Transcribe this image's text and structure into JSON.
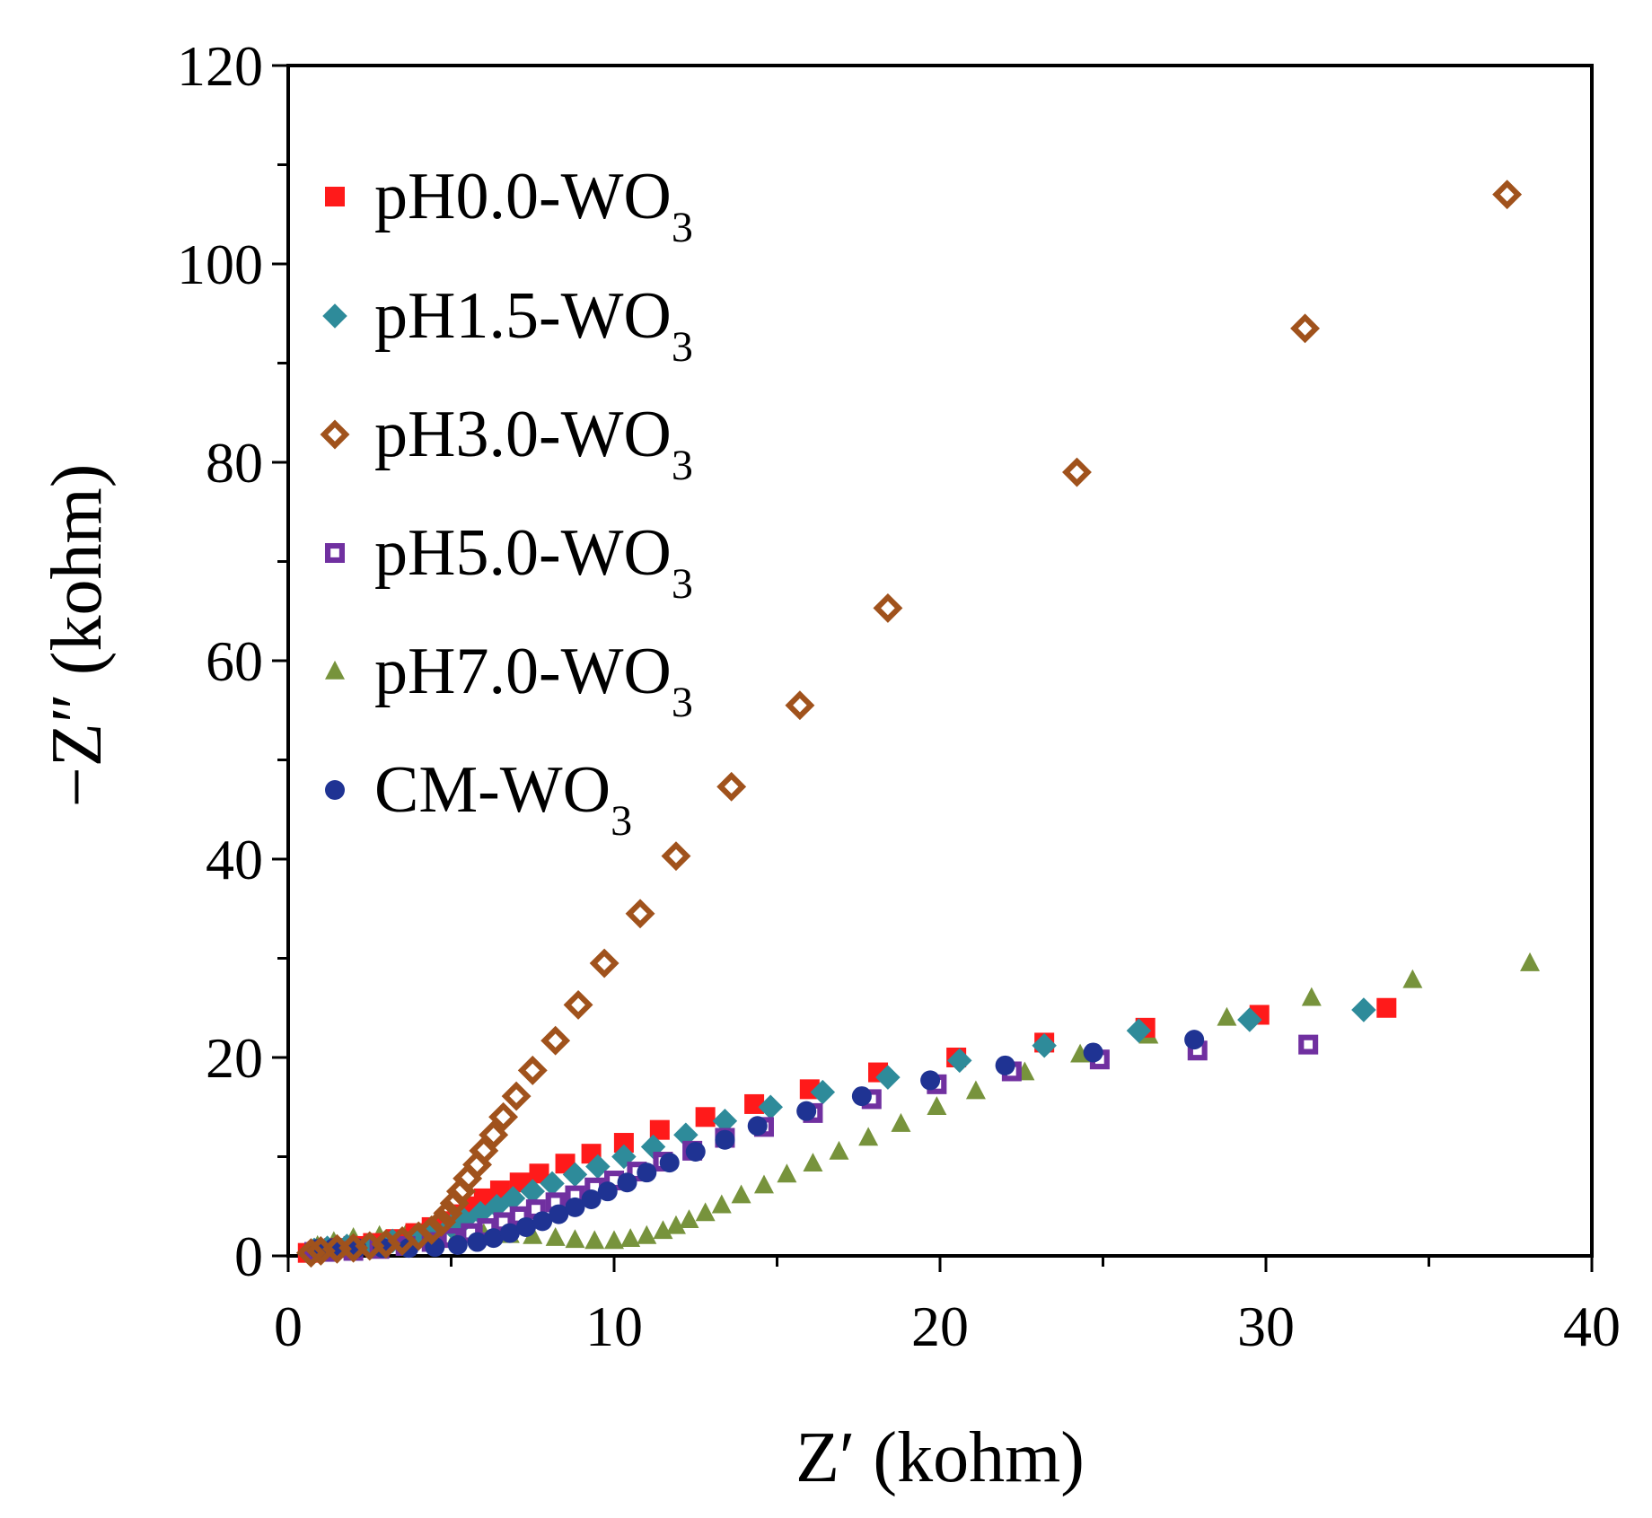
{
  "chart_data": {
    "type": "scatter",
    "title": "",
    "xlabel": "Z′ (kohm)",
    "ylabel": "−Z″ (kohm)",
    "xlim": [
      0,
      40
    ],
    "ylim": [
      0,
      120
    ],
    "xticks": [
      "0",
      "10",
      "20",
      "30",
      "40"
    ],
    "yticks": [
      "0",
      "20",
      "40",
      "60",
      "80",
      "100",
      "120"
    ],
    "grid": false,
    "legend_position": "top-left",
    "series": [
      {
        "name": "pH0.0-WO",
        "sub": "3",
        "marker": "square",
        "filled": true,
        "color": "#ff1a1a",
        "points": [
          [
            0.6,
            0.3
          ],
          [
            0.9,
            0.5
          ],
          [
            1.4,
            0.8
          ],
          [
            2.0,
            1.0
          ],
          [
            2.6,
            1.3
          ],
          [
            3.3,
            1.7
          ],
          [
            3.9,
            2.3
          ],
          [
            4.4,
            2.9
          ],
          [
            4.8,
            3.5
          ],
          [
            5.2,
            4.2
          ],
          [
            5.6,
            5.0
          ],
          [
            6.0,
            5.8
          ],
          [
            6.5,
            6.6
          ],
          [
            7.1,
            7.4
          ],
          [
            7.7,
            8.3
          ],
          [
            8.5,
            9.3
          ],
          [
            9.3,
            10.3
          ],
          [
            10.3,
            11.4
          ],
          [
            11.4,
            12.7
          ],
          [
            12.8,
            14.0
          ],
          [
            14.3,
            15.3
          ],
          [
            16.0,
            16.8
          ],
          [
            18.1,
            18.5
          ],
          [
            20.5,
            20.0
          ],
          [
            23.2,
            21.5
          ],
          [
            26.3,
            23.0
          ],
          [
            29.8,
            24.3
          ],
          [
            33.7,
            25.0
          ]
        ]
      },
      {
        "name": "pH1.5-WO",
        "sub": "3",
        "marker": "diamond",
        "filled": true,
        "color": "#2e8b9a",
        "points": [
          [
            0.8,
            0.6
          ],
          [
            1.2,
            0.8
          ],
          [
            1.8,
            1.0
          ],
          [
            2.5,
            1.2
          ],
          [
            3.2,
            1.5
          ],
          [
            3.9,
            1.9
          ],
          [
            4.5,
            2.4
          ],
          [
            5.0,
            3.0
          ],
          [
            5.4,
            3.6
          ],
          [
            5.9,
            4.3
          ],
          [
            6.4,
            5.0
          ],
          [
            6.9,
            5.8
          ],
          [
            7.5,
            6.5
          ],
          [
            8.1,
            7.3
          ],
          [
            8.8,
            8.2
          ],
          [
            9.5,
            9.0
          ],
          [
            10.3,
            10.0
          ],
          [
            11.2,
            11.0
          ],
          [
            12.2,
            12.2
          ],
          [
            13.4,
            13.6
          ],
          [
            14.8,
            15.0
          ],
          [
            16.4,
            16.5
          ],
          [
            18.4,
            18.0
          ],
          [
            20.6,
            19.7
          ],
          [
            23.2,
            21.2
          ],
          [
            26.1,
            22.7
          ],
          [
            29.5,
            23.8
          ],
          [
            33.0,
            24.8
          ]
        ]
      },
      {
        "name": "pH3.0-WO",
        "sub": "3",
        "marker": "diamond",
        "filled": false,
        "color": "#a0521c",
        "points": [
          [
            0.7,
            0.3
          ],
          [
            1.0,
            0.5
          ],
          [
            1.5,
            0.7
          ],
          [
            2.0,
            0.8
          ],
          [
            2.5,
            1.0
          ],
          [
            3.0,
            1.2
          ],
          [
            3.5,
            1.5
          ],
          [
            4.0,
            2.0
          ],
          [
            4.4,
            2.6
          ],
          [
            4.7,
            3.4
          ],
          [
            4.9,
            4.3
          ],
          [
            5.1,
            5.3
          ],
          [
            5.3,
            6.5
          ],
          [
            5.5,
            7.8
          ],
          [
            5.8,
            9.2
          ],
          [
            6.0,
            10.6
          ],
          [
            6.3,
            12.2
          ],
          [
            6.6,
            14.0
          ],
          [
            7.0,
            16.1
          ],
          [
            7.5,
            18.7
          ],
          [
            8.2,
            21.7
          ],
          [
            8.9,
            25.3
          ],
          [
            9.7,
            29.5
          ],
          [
            10.8,
            34.5
          ],
          [
            11.9,
            40.3
          ],
          [
            13.6,
            47.3
          ],
          [
            15.7,
            55.5
          ],
          [
            18.4,
            65.3
          ],
          [
            24.2,
            79.0
          ],
          [
            31.2,
            93.5
          ],
          [
            37.4,
            107.0
          ]
        ]
      },
      {
        "name": "pH5.0-WO",
        "sub": "3",
        "marker": "square",
        "filled": false,
        "color": "#7030a0",
        "points": [
          [
            0.8,
            0.4
          ],
          [
            1.2,
            0.4
          ],
          [
            2.0,
            0.5
          ],
          [
            2.8,
            0.7
          ],
          [
            3.6,
            1.0
          ],
          [
            4.4,
            1.4
          ],
          [
            5.0,
            1.8
          ],
          [
            5.6,
            2.3
          ],
          [
            6.1,
            2.8
          ],
          [
            6.6,
            3.4
          ],
          [
            7.1,
            4.0
          ],
          [
            7.6,
            4.7
          ],
          [
            8.2,
            5.4
          ],
          [
            8.8,
            6.1
          ],
          [
            9.4,
            6.9
          ],
          [
            10.0,
            7.6
          ],
          [
            10.7,
            8.5
          ],
          [
            11.5,
            9.5
          ],
          [
            12.4,
            10.6
          ],
          [
            13.4,
            11.9
          ],
          [
            14.6,
            13.0
          ],
          [
            16.1,
            14.4
          ],
          [
            17.9,
            15.8
          ],
          [
            19.9,
            17.3
          ],
          [
            22.2,
            18.6
          ],
          [
            24.9,
            19.8
          ],
          [
            27.9,
            20.7
          ],
          [
            31.3,
            21.3
          ]
        ]
      },
      {
        "name": "pH7.0-WO",
        "sub": "3",
        "marker": "triangle",
        "filled": true,
        "color": "#77933c",
        "points": [
          [
            0.9,
            1.0
          ],
          [
            1.4,
            1.4
          ],
          [
            2.0,
            1.8
          ],
          [
            2.8,
            2.0
          ],
          [
            3.6,
            2.1
          ],
          [
            4.4,
            2.2
          ],
          [
            5.2,
            2.2
          ],
          [
            6.0,
            2.2
          ],
          [
            6.8,
            2.1
          ],
          [
            7.5,
            2.0
          ],
          [
            8.2,
            1.8
          ],
          [
            8.8,
            1.6
          ],
          [
            9.4,
            1.5
          ],
          [
            10.0,
            1.5
          ],
          [
            10.5,
            1.7
          ],
          [
            11.0,
            2.0
          ],
          [
            11.5,
            2.5
          ],
          [
            11.9,
            3.0
          ],
          [
            12.3,
            3.6
          ],
          [
            12.8,
            4.3
          ],
          [
            13.3,
            5.1
          ],
          [
            13.9,
            6.1
          ],
          [
            14.6,
            7.1
          ],
          [
            15.3,
            8.2
          ],
          [
            16.1,
            9.3
          ],
          [
            16.9,
            10.5
          ],
          [
            17.8,
            11.9
          ],
          [
            18.8,
            13.3
          ],
          [
            19.9,
            15.0
          ],
          [
            21.1,
            16.6
          ],
          [
            22.6,
            18.5
          ],
          [
            24.3,
            20.3
          ],
          [
            26.4,
            22.2
          ],
          [
            28.8,
            24.0
          ],
          [
            31.4,
            26.0
          ],
          [
            34.5,
            27.8
          ],
          [
            38.1,
            29.5
          ]
        ]
      },
      {
        "name": "CM-WO",
        "sub": "3",
        "marker": "circle",
        "filled": true,
        "color": "#1f3393",
        "points": [
          [
            0.9,
            0.7
          ],
          [
            1.4,
            0.8
          ],
          [
            2.1,
            0.8
          ],
          [
            2.9,
            0.8
          ],
          [
            3.7,
            0.8
          ],
          [
            4.5,
            0.9
          ],
          [
            5.2,
            1.1
          ],
          [
            5.8,
            1.4
          ],
          [
            6.3,
            1.8
          ],
          [
            6.8,
            2.3
          ],
          [
            7.3,
            2.9
          ],
          [
            7.8,
            3.5
          ],
          [
            8.3,
            4.2
          ],
          [
            8.8,
            4.9
          ],
          [
            9.3,
            5.7
          ],
          [
            9.8,
            6.5
          ],
          [
            10.4,
            7.4
          ],
          [
            11.0,
            8.4
          ],
          [
            11.7,
            9.4
          ],
          [
            12.5,
            10.5
          ],
          [
            13.4,
            11.7
          ],
          [
            14.4,
            13.1
          ],
          [
            15.9,
            14.6
          ],
          [
            17.6,
            16.1
          ],
          [
            19.7,
            17.7
          ],
          [
            22.0,
            19.2
          ],
          [
            24.7,
            20.5
          ],
          [
            27.8,
            21.8
          ]
        ]
      }
    ]
  }
}
